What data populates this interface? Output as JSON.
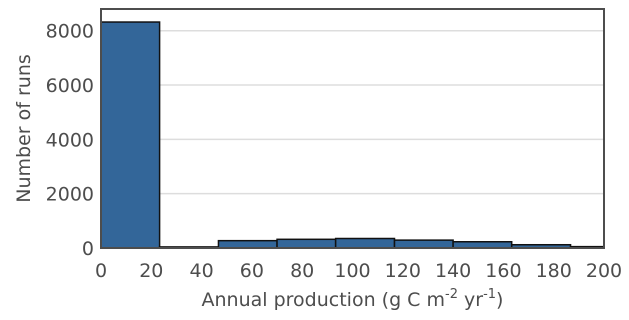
{
  "chart_data": {
    "type": "bar",
    "subtype": "histogram",
    "title": "",
    "xlabel": {
      "parts": [
        "Annual production (g C m",
        "-2",
        " yr",
        "-1",
        ")"
      ]
    },
    "ylabel": "Number of runs",
    "xlim": [
      0,
      200
    ],
    "ylim": [
      0,
      8800
    ],
    "xticks": [
      0,
      20,
      40,
      60,
      80,
      100,
      120,
      140,
      160,
      180,
      200
    ],
    "yticks": [
      0,
      2000,
      4000,
      6000,
      8000
    ],
    "grid": "horizontal",
    "bar_color": "#336699",
    "bins": [
      {
        "x0": 0,
        "x1": 23.3,
        "value": 8320
      },
      {
        "x0": 23.3,
        "x1": 46.7,
        "value": 40
      },
      {
        "x0": 46.7,
        "x1": 70,
        "value": 270
      },
      {
        "x0": 70,
        "x1": 93.3,
        "value": 320
      },
      {
        "x0": 93.3,
        "x1": 116.7,
        "value": 350
      },
      {
        "x0": 116.7,
        "x1": 140,
        "value": 290
      },
      {
        "x0": 140,
        "x1": 163.3,
        "value": 230
      },
      {
        "x0": 163.3,
        "x1": 186.7,
        "value": 120
      },
      {
        "x0": 186.7,
        "x1": 210,
        "value": 50
      }
    ]
  }
}
